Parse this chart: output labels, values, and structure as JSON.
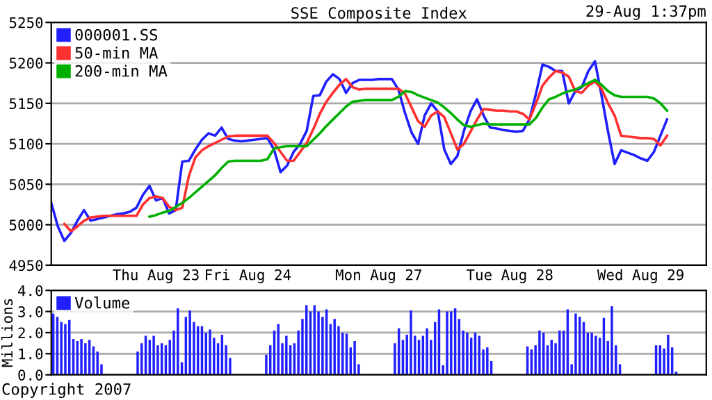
{
  "chart_data": [
    {
      "type": "line",
      "title": "SSE Composite Index",
      "subtitle": "29-Aug 1:37pm",
      "categories": [
        null,
        null,
        null,
        null,
        null,
        null,
        null,
        null,
        null,
        null,
        null,
        null,
        null,
        null,
        null,
        null,
        "Thu Aug 23",
        null,
        null,
        null,
        null,
        null,
        null,
        null,
        null,
        null,
        null,
        null,
        null,
        null,
        "Fri Aug 24",
        null,
        null,
        null,
        null,
        null,
        null,
        null,
        null,
        null,
        null,
        null,
        null,
        null,
        null,
        null,
        null,
        null,
        null,
        null,
        "Mon Aug 27",
        null,
        null,
        null,
        null,
        null,
        null,
        null,
        null,
        null,
        null,
        null,
        null,
        null,
        null,
        null,
        null,
        null,
        null,
        null,
        "Tue Aug 28",
        null,
        null,
        null,
        null,
        null,
        null,
        null,
        null,
        null,
        null,
        null,
        null,
        null,
        null,
        null,
        null,
        null,
        null,
        null,
        "Wed Aug 29",
        null,
        null,
        null,
        null,
        null,
        null,
        null,
        null,
        null
      ],
      "ylim": [
        4950,
        5250
      ],
      "yticks": [
        4950,
        5000,
        5050,
        5100,
        5150,
        5200,
        5250
      ],
      "grid": "y",
      "legend": "top left",
      "line_style": "solid",
      "marker": "none",
      "series": [
        {
          "name": "000001.SS",
          "color": "#2020ff",
          "values": [
            5027,
            4998,
            4980,
            4990,
            5005,
            5018,
            5005,
            5007,
            5009,
            5011,
            5013,
            5014,
            5016,
            5021,
            5037,
            5048,
            5030,
            5033,
            5014,
            5018,
            5078,
            5079,
            5093,
            5105,
            5113,
            5110,
            5120,
            5106,
            5104,
            5103,
            5104,
            5105,
            5106,
            5107,
            5093,
            5065,
            5073,
            5090,
            5100,
            5116,
            5159,
            5160,
            5177,
            5186,
            5180,
            5163,
            5175,
            5179,
            5179,
            5179,
            5180,
            5180,
            5180,
            5167,
            5138,
            5114,
            5100,
            5135,
            5150,
            5140,
            5093,
            5075,
            5085,
            5116,
            5140,
            5155,
            5135,
            5120,
            5119,
            5117,
            5116,
            5115,
            5116,
            5130,
            5162,
            5198,
            5195,
            5190,
            5190,
            5150,
            5165,
            5170,
            5190,
            5202,
            5160,
            5115,
            5075,
            5092,
            5089,
            5086,
            5082,
            5079,
            5090,
            5110,
            5130,
            null,
            null,
            null,
            null,
            null
          ]
        },
        {
          "name": "50-min MA",
          "color": "#ff3030",
          "values": [
            null,
            null,
            5001,
            4992,
            4998,
            5005,
            5009,
            5010,
            5011,
            5011,
            5011,
            5011,
            5011,
            5011,
            5025,
            5033,
            5035,
            5033,
            5022,
            5018,
            5021,
            5060,
            5083,
            5092,
            5097,
            5101,
            5105,
            5109,
            5110,
            5110,
            5110,
            5110,
            5110,
            5110,
            5101,
            5090,
            5079,
            5079,
            5090,
            5101,
            5118,
            5137,
            5152,
            5163,
            5173,
            5180,
            5170,
            5167,
            5168,
            5168,
            5168,
            5168,
            5168,
            5168,
            5162,
            5145,
            5128,
            5121,
            5135,
            5140,
            5133,
            5113,
            5093,
            5100,
            5115,
            5130,
            5143,
            5142,
            5141,
            5141,
            5140,
            5140,
            5137,
            5130,
            5150,
            5172,
            5182,
            5190,
            5188,
            5183,
            5165,
            5163,
            5172,
            5177,
            5168,
            5150,
            5135,
            5110,
            5109,
            5108,
            5107,
            5107,
            5106,
            5098,
            5110,
            null,
            null,
            null,
            null,
            null
          ]
        },
        {
          "name": "200-min MA",
          "color": "#00b000",
          "values": [
            null,
            null,
            null,
            null,
            null,
            null,
            null,
            null,
            null,
            null,
            null,
            null,
            null,
            null,
            null,
            5010,
            5012,
            5015,
            5017,
            5022,
            5027,
            5033,
            5040,
            5047,
            5054,
            5061,
            5070,
            5078,
            5079,
            5079,
            5079,
            5079,
            5079,
            5081,
            5094,
            5096,
            5097,
            5097,
            5097,
            5097,
            5105,
            5113,
            5122,
            5130,
            5138,
            5146,
            5152,
            5153,
            5154,
            5154,
            5154,
            5154,
            5154,
            5158,
            5165,
            5164,
            5160,
            5157,
            5154,
            5151,
            5145,
            5138,
            5130,
            5123,
            5121,
            5123,
            5125,
            5124,
            5124,
            5124,
            5124,
            5124,
            5124,
            5124,
            5132,
            5145,
            5155,
            5158,
            5162,
            5165,
            5167,
            5171,
            5175,
            5179,
            5173,
            5165,
            5160,
            5158,
            5158,
            5158,
            5158,
            5158,
            5156,
            5150,
            5141,
            null,
            null,
            null,
            null,
            null
          ]
        }
      ]
    },
    {
      "type": "bar",
      "ylabel": "Millions",
      "categories": [
        null,
        null,
        null,
        null,
        null,
        null,
        null,
        null,
        null,
        null,
        null,
        null,
        null,
        null,
        null,
        null,
        null,
        null,
        null,
        null,
        null,
        null,
        null,
        null,
        null,
        null,
        null,
        null,
        null,
        null,
        null,
        null,
        null,
        null,
        null,
        null,
        null,
        null,
        null,
        null,
        null,
        null,
        null,
        null,
        null,
        null,
        null,
        null,
        null,
        null,
        null,
        null,
        null,
        null,
        null,
        null,
        null,
        null,
        null,
        null,
        null,
        null,
        null,
        null,
        null,
        null,
        null,
        null,
        null,
        null,
        null,
        null,
        null,
        null,
        null,
        null,
        null,
        null,
        null,
        null,
        null,
        null,
        null,
        null,
        null,
        null,
        null,
        null,
        null,
        null,
        null,
        null,
        null,
        null,
        null,
        null,
        null,
        null,
        null,
        null,
        null,
        null,
        null,
        null,
        null,
        null,
        null,
        null,
        null,
        null,
        null,
        null,
        null,
        null,
        null,
        null,
        null,
        null,
        null,
        null,
        null,
        null,
        null,
        null,
        null,
        null,
        null,
        null,
        null,
        null,
        null,
        null,
        null,
        null,
        null,
        null,
        null,
        null,
        null,
        null,
        null,
        null,
        null,
        null,
        null,
        null,
        null,
        null,
        null,
        null,
        null,
        null,
        null,
        null,
        null,
        null,
        null,
        null,
        null,
        null,
        null,
        null,
        null
      ],
      "ylim": [
        0,
        4
      ],
      "yticks": [
        {
          "value": 0,
          "label": "0.0"
        },
        {
          "value": 1,
          "label": "1.0"
        },
        {
          "value": 2,
          "label": "2.0"
        },
        {
          "value": 3,
          "label": "3.0"
        },
        {
          "value": 4,
          "label": "4.0"
        }
      ],
      "tick_labels": "y",
      "grid": "y",
      "legend": "top left",
      "annotations": [
        "Copyright 2007"
      ],
      "series": [
        {
          "name": "Volume",
          "color": "#2020ff",
          "values": [
            2.9,
            2.75,
            2.5,
            2.4,
            2.6,
            1.7,
            1.6,
            1.7,
            1.5,
            1.65,
            1.35,
            1.1,
            0.5,
            null,
            null,
            null,
            null,
            null,
            null,
            null,
            null,
            1.1,
            1.5,
            1.85,
            1.65,
            1.85,
            1.4,
            1.5,
            1.4,
            1.65,
            2.1,
            3.15,
            0.6,
            2.75,
            3.05,
            2.5,
            2.3,
            2.3,
            2.0,
            2.15,
            1.75,
            1.5,
            1.9,
            1.4,
            0.8,
            null,
            null,
            null,
            null,
            null,
            null,
            null,
            null,
            0.95,
            1.4,
            2.1,
            2.4,
            1.5,
            1.85,
            1.4,
            1.5,
            2.1,
            2.65,
            3.3,
            3.0,
            3.3,
            3.0,
            2.75,
            3.1,
            2.4,
            2.65,
            2.3,
            2.0,
            1.95,
            1.3,
            1.6,
            0.5,
            null,
            null,
            null,
            null,
            null,
            null,
            null,
            null,
            1.5,
            2.2,
            1.65,
            1.9,
            3.05,
            1.85,
            1.65,
            1.85,
            2.2,
            1.65,
            2.5,
            3.1,
            0.45,
            3.0,
            3.0,
            3.15,
            2.65,
            2.1,
            2.0,
            1.75,
            2.0,
            1.85,
            1.2,
            1.3,
            0.65,
            null,
            null,
            null,
            null,
            null,
            null,
            null,
            null,
            1.35,
            1.2,
            1.4,
            2.1,
            2.0,
            1.4,
            1.65,
            1.5,
            2.1,
            2.1,
            3.1,
            0.5,
            2.9,
            2.75,
            2.5,
            2.0,
            2.0,
            1.85,
            1.75,
            2.7,
            1.6,
            3.25,
            1.4,
            0.5,
            null,
            null,
            null,
            null,
            null,
            null,
            null,
            null,
            1.4,
            1.4,
            1.25,
            1.9,
            1.3,
            0.15,
            null,
            null,
            null,
            null,
            null,
            null,
            null
          ]
        }
      ]
    }
  ]
}
